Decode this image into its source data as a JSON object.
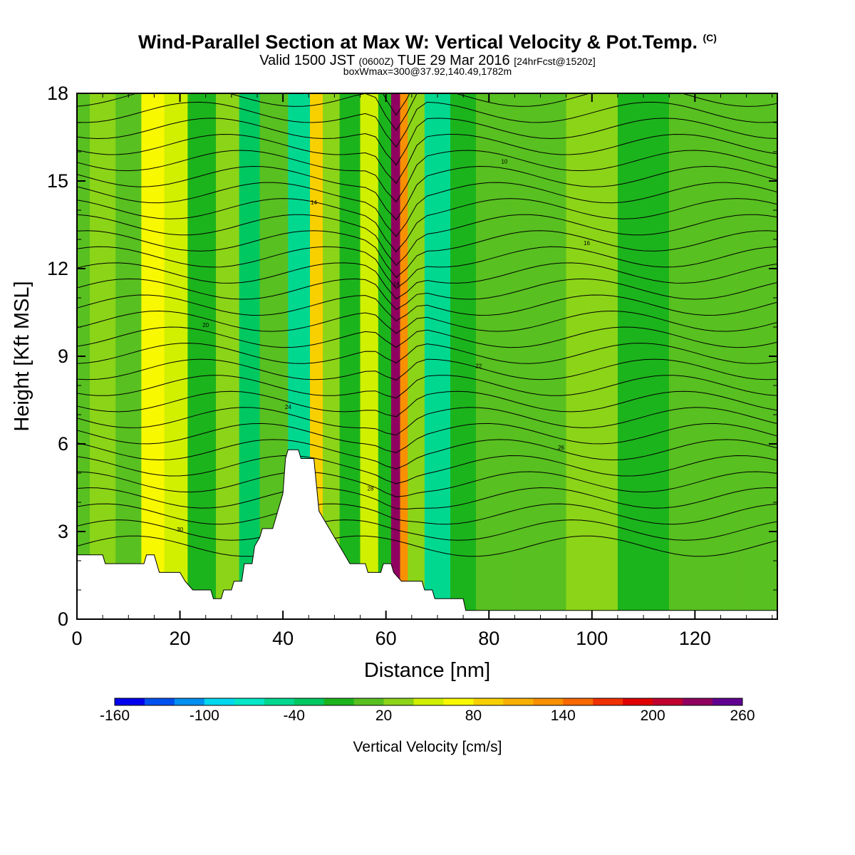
{
  "header": {
    "title_main": "Wind-Parallel Section at Max W: Vertical Velocity & Pot.Temp.",
    "title_copyright": "(C)",
    "valid_prefix": "Valid 1500 JST",
    "valid_zulu": "(0600Z)",
    "valid_date": "TUE 29 Mar 2016",
    "valid_fcst": "[24hrFcst@1520z]",
    "box_info": "boxWmax=300@37.92,140.49,1782m"
  },
  "chart_data": {
    "type": "heatmap",
    "title": "Wind-Parallel Section at Max W: Vertical Velocity & Pot.Temp.",
    "xlabel": "Distance [nm]",
    "ylabel": "Height [Kft MSL]",
    "xlim": [
      0,
      136
    ],
    "ylim": [
      0,
      18
    ],
    "x_ticks": [
      "0",
      "20",
      "40",
      "60",
      "80",
      "100",
      "120"
    ],
    "y_ticks": [
      "0",
      "3",
      "6",
      "9",
      "12",
      "15",
      "18"
    ],
    "colorbar": {
      "label": "Vertical Velocity [cm/s]",
      "tick_labels": [
        "-160",
        "-100",
        "-40",
        "20",
        "80",
        "140",
        "200",
        "260"
      ],
      "levels": [
        -160,
        -140,
        -120,
        -100,
        -80,
        -60,
        -40,
        -20,
        0,
        20,
        40,
        60,
        80,
        100,
        120,
        140,
        160,
        180,
        200,
        220,
        240,
        260
      ],
      "colors": [
        "#0000ee",
        "#0050f0",
        "#0090f0",
        "#00d8f0",
        "#00e8c8",
        "#00d890",
        "#00c860",
        "#1cb41c",
        "#58c020",
        "#8cd418",
        "#d0f000",
        "#f8f800",
        "#f8d000",
        "#f8b000",
        "#f89000",
        "#f86800",
        "#f03000",
        "#e00000",
        "#c00030",
        "#900060",
        "#600090"
      ]
    },
    "terrain_kft": [
      [
        0,
        2.2
      ],
      [
        5,
        2.2
      ],
      [
        5.5,
        1.9
      ],
      [
        13,
        1.9
      ],
      [
        13.5,
        2.2
      ],
      [
        15,
        2.2
      ],
      [
        15.5,
        1.9
      ],
      [
        16,
        1.6
      ],
      [
        20,
        1.6
      ],
      [
        21,
        1.3
      ],
      [
        22.5,
        1.0
      ],
      [
        26,
        1.0
      ],
      [
        26.5,
        0.7
      ],
      [
        28,
        0.7
      ],
      [
        28.5,
        1.0
      ],
      [
        30,
        1.0
      ],
      [
        30.5,
        1.3
      ],
      [
        32,
        1.3
      ],
      [
        32.5,
        1.9
      ],
      [
        34,
        1.9
      ],
      [
        34.5,
        2.5
      ],
      [
        35.5,
        2.8
      ],
      [
        36,
        3.1
      ],
      [
        38,
        3.1
      ],
      [
        38.5,
        3.4
      ],
      [
        39,
        3.7
      ],
      [
        40,
        4.3
      ],
      [
        40.5,
        5.5
      ],
      [
        41,
        5.8
      ],
      [
        43,
        5.8
      ],
      [
        43.5,
        5.5
      ],
      [
        46,
        5.5
      ],
      [
        46.5,
        4.6
      ],
      [
        47,
        3.7
      ],
      [
        48,
        3.4
      ],
      [
        49,
        3.1
      ],
      [
        50,
        2.8
      ],
      [
        51,
        2.5
      ],
      [
        52,
        2.2
      ],
      [
        53,
        1.9
      ],
      [
        56,
        1.9
      ],
      [
        56.5,
        1.6
      ],
      [
        59,
        1.6
      ],
      [
        59.5,
        1.9
      ],
      [
        61,
        1.9
      ],
      [
        61.5,
        1.6
      ],
      [
        63,
        1.3
      ],
      [
        67,
        1.3
      ],
      [
        67.5,
        1.0
      ],
      [
        69,
        1.0
      ],
      [
        69.5,
        0.7
      ],
      [
        75,
        0.7
      ],
      [
        75.5,
        0.3
      ],
      [
        136,
        0.3
      ]
    ],
    "w_field_cm_s": [
      {
        "x": 0,
        "w": 10
      },
      {
        "x": 5,
        "w": 25
      },
      {
        "x": 10,
        "w": 5
      },
      {
        "x": 15,
        "w": 70
      },
      {
        "x": 19,
        "w": 40
      },
      {
        "x": 24,
        "w": -10
      },
      {
        "x": 30,
        "w": 20
      },
      {
        "x": 33,
        "w": -30
      },
      {
        "x": 38,
        "w": 10
      },
      {
        "x": 44,
        "w": -50
      },
      {
        "x": 46.5,
        "w": 90
      },
      {
        "x": 49,
        "w": 30
      },
      {
        "x": 53,
        "w": -20
      },
      {
        "x": 57,
        "w": 50
      },
      {
        "x": 60,
        "w": -10
      },
      {
        "x": 62,
        "w": 230
      },
      {
        "x": 63.5,
        "w": 120
      },
      {
        "x": 65,
        "w": 20
      },
      {
        "x": 70,
        "w": -50
      },
      {
        "x": 75,
        "w": -10
      },
      {
        "x": 80,
        "w": 10
      },
      {
        "x": 90,
        "w": 0
      },
      {
        "x": 100,
        "w": 20
      },
      {
        "x": 110,
        "w": -5
      },
      {
        "x": 120,
        "w": 15
      },
      {
        "x": 136,
        "w": 5
      }
    ],
    "theta_contour_labels": [
      "30",
      "28",
      "26",
      "24",
      "22",
      "20",
      "18",
      "16",
      "14",
      "10"
    ]
  }
}
